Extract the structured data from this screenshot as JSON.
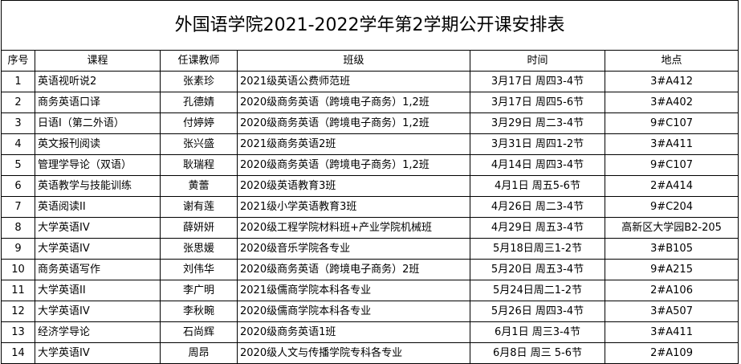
{
  "title": "外国语学院2021-2022学年第2学期公开课安排表",
  "headers": [
    "序号",
    "课程",
    "任课教师",
    "班级",
    "时间",
    "地点"
  ],
  "rows": [
    [
      "1",
      "英语视听说2",
      "张素珍",
      "2021级英语公费师范班",
      "3月17日 周四3-4节",
      "3#A412"
    ],
    [
      "2",
      "商务英语口译",
      "孔德婧",
      "2020级商务英语（跨境电子商务）1,2班",
      "3月17日 周四5-6节",
      "3#A402"
    ],
    [
      "3",
      "日语I（第二外语）",
      "付婷婷",
      "2020级商务英语（跨境电子商务）1,2班",
      "3月29日 周二3-4节",
      "9#C107"
    ],
    [
      "4",
      "英文报刊阅读",
      "张兴盛",
      "2021级商务英语2班",
      "3月31日 周四1-2节",
      "3#A411"
    ],
    [
      "5",
      "管理学导论（双语）",
      "耿瑞程",
      "2020级商务英语（跨境电子商务）1,2班",
      "4月14日 周四3-4节",
      "9#C107"
    ],
    [
      "6",
      "英语教学与技能训练",
      "黄蕾",
      "2020级英语教育3班",
      "4月1日 周五5-6节",
      "2#A414"
    ],
    [
      "7",
      "英语阅读II",
      "谢有莲",
      "2021级小学英语教育3班",
      "4月26日 周二3-4节",
      "9#C204"
    ],
    [
      "8",
      "大学英语IV",
      "薛妍妍",
      "2020级工程学院材料班+产业学院机械班",
      "4月29日 周五3-4节",
      "高新区大学园B2-205"
    ],
    [
      "9",
      "大学英语IV",
      "张思媛",
      "2020级音乐学院各专业",
      "5月18日周三1-2节",
      "3#B105"
    ],
    [
      "10",
      "商务英语写作",
      "刘伟华",
      "2020级商务英语（跨境电子商务）2班",
      "5月20日 周五3-4节",
      "9#A215"
    ],
    [
      "11",
      "大学英语II",
      "李广明",
      "2021级儒商学院本科各专业",
      "5月24日周二1-2节",
      "2#A106"
    ],
    [
      "12",
      "大学英语IV",
      "李秋畹",
      "2020级儒商学院本科各专业",
      "5月26日 周四3-4节",
      "3#A507"
    ],
    [
      "13",
      "经济学导论",
      "石尚辉",
      "2020级商务英语1班",
      "6月1日 周三3-4节",
      "3#A411"
    ],
    [
      "14",
      "大学英语IV",
      "周昂",
      "2020级人文与传播学院专科各专业",
      "6月8日 周三 5-6节",
      "2#A109"
    ]
  ]
}
